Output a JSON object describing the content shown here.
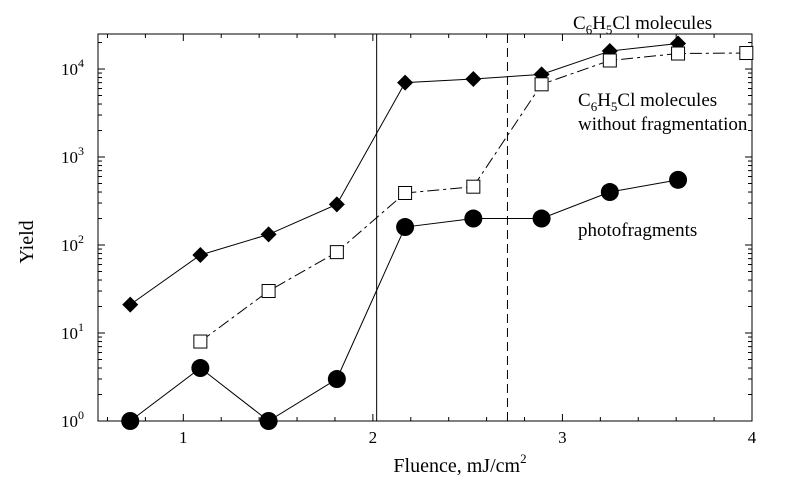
{
  "chart_data": {
    "type": "line",
    "xlabel": "Fluence, mJ/cm",
    "xlabel_superscript": "2",
    "ylabel": "Yield",
    "xlim": [
      0.55,
      4.0
    ],
    "ylim": [
      1,
      25000
    ],
    "yscale": "log",
    "grid": false,
    "x_ticks": [
      {
        "value": 1,
        "label": "1"
      },
      {
        "value": 2,
        "label": "2"
      },
      {
        "value": 3,
        "label": "3"
      },
      {
        "value": 4,
        "label": "4"
      }
    ],
    "y_ticks": [
      {
        "value": 1,
        "base": "10",
        "exp": "0"
      },
      {
        "value": 10,
        "base": "10",
        "exp": "1"
      },
      {
        "value": 100,
        "base": "10",
        "exp": "2"
      },
      {
        "value": 1000,
        "base": "10",
        "exp": "3"
      },
      {
        "value": 10000,
        "base": "10",
        "exp": "4"
      }
    ],
    "reference_lines": [
      {
        "x": 2.02,
        "style": "solid"
      },
      {
        "x": 2.71,
        "style": "dashed"
      }
    ],
    "series": [
      {
        "key": "c6h5cl",
        "label_lines": [
          [
            {
              "t": "C"
            },
            {
              "t": "6",
              "sub": true
            },
            {
              "t": "H"
            },
            {
              "t": "5",
              "sub": true
            },
            {
              "t": "Cl molecules"
            }
          ]
        ],
        "marker": "diamond",
        "line": "solid",
        "x": [
          0.72,
          1.09,
          1.45,
          1.81,
          2.17,
          2.53,
          2.89,
          3.25,
          3.61
        ],
        "y": [
          21,
          77,
          132,
          290,
          7000,
          7700,
          8700,
          16000,
          19500
        ]
      },
      {
        "key": "c6h5cl_nofrag",
        "label_lines": [
          [
            {
              "t": "C"
            },
            {
              "t": "6",
              "sub": true
            },
            {
              "t": "H"
            },
            {
              "t": "5",
              "sub": true
            },
            {
              "t": "Cl molecules"
            }
          ],
          [
            {
              "t": "without fragmentation"
            }
          ]
        ],
        "marker": "square-open",
        "line": "dashed",
        "x": [
          1.09,
          1.45,
          1.81,
          2.17,
          2.53,
          2.89,
          3.25,
          3.61,
          3.97
        ],
        "y": [
          8,
          30,
          83,
          390,
          460,
          6700,
          12500,
          15000,
          15200
        ]
      },
      {
        "key": "photofragments",
        "label_lines": [
          [
            {
              "t": "photofragments"
            }
          ]
        ],
        "marker": "circle",
        "line": "solid",
        "x": [
          0.72,
          1.09,
          1.45,
          1.81,
          2.17,
          2.53,
          2.89,
          3.25,
          3.61
        ],
        "y": [
          1,
          4,
          1,
          3,
          160,
          200,
          200,
          400,
          550
        ]
      }
    ]
  }
}
